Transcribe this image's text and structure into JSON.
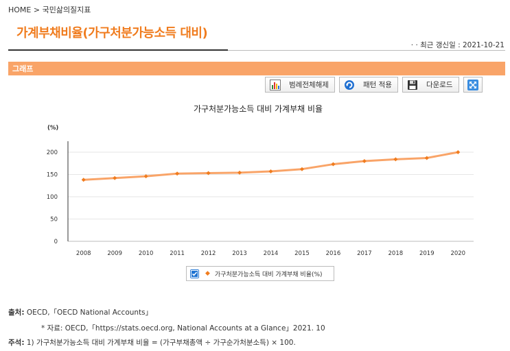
{
  "breadcrumb": "HOME > 국민삶의질지표",
  "page_title": "가계부채비율(가구처분가능소득 대비)",
  "update_info": "· · 최근 갱신일 : 2021-10-21",
  "section_title": "그래프",
  "toolbar": {
    "legend_toggle_label": "범례전체해제",
    "pattern_label": "패턴 적용",
    "download_label": "다운로드"
  },
  "chart_data": {
    "type": "line",
    "title": "가구처분가능소득 대비 가계부채 비율",
    "ylabel": "(%)",
    "xlabel": "",
    "ylim": [
      0,
      200
    ],
    "yticks": [
      0,
      50,
      100,
      150,
      200
    ],
    "categories": [
      "2008",
      "2009",
      "2010",
      "2011",
      "2012",
      "2013",
      "2014",
      "2015",
      "2016",
      "2017",
      "2018",
      "2019",
      "2020"
    ],
    "series": [
      {
        "name": "가구처분가능소득 대비 가계부채 비율(%)",
        "values": [
          138,
          142,
          146,
          152,
          153,
          154,
          157,
          162,
          173,
          180,
          184,
          187,
          200
        ],
        "color": "#f9a468"
      }
    ],
    "grid": true,
    "legend_position": "bottom"
  },
  "notes": {
    "source_label": "출처:",
    "source_text": "OECD,「OECD National Accounts」",
    "data_text": "* 자료: OECD,「https://stats.oecd.org, National Accounts at a Glance」2021. 10",
    "note_label": "주석:",
    "note_text": "1) 가구처분가능소득 대비 가계부채 비율 = (가구부채총액 ÷ 가구순가처분소득) × 100."
  }
}
